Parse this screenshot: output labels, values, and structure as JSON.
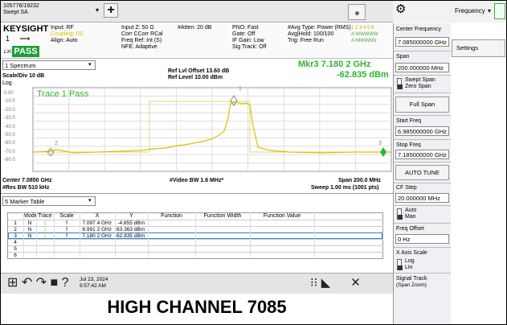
{
  "top": {
    "id": "105776/19232",
    "mode": "Swept SA",
    "menu": "Frequency"
  },
  "info": {
    "brand": "KEYSIGHT",
    "input": "Input: RF",
    "coupling": "Coupling: DC",
    "align": "Align: Auto",
    "status": "PASS",
    "lxi": "LXI",
    "col2": [
      "Input Z: 50 Ω",
      "Corr CCorr RCal",
      "Freq Ref: Int (S)",
      "NFE: Adaptive"
    ],
    "atten": "#Atten: 20 dB",
    "col4": [
      "PNO: Fast",
      "Gate: Off",
      "IF Gain: Low",
      "Sig Track: Off"
    ],
    "col5": [
      "#Avg Type: Power (RMS)",
      "Avg|Hold: 100/100",
      "Trig: Free Run"
    ],
    "traces": [
      "1 2 3 4 5 6",
      "A WWWWW",
      "A NNNNNN"
    ]
  },
  "graph": {
    "window": "1 Spectrum",
    "scale": "Scale/Div 10 dB",
    "log": "Log",
    "ref_offset": "Ref Lvl Offset 13.60 dB",
    "ref_level": "Ref Level 10.00 dBm",
    "marker_freq": "Mkr3  7.180 2 GHz",
    "marker_value": "-62.835 dBm",
    "trace_label": "Trace 1 Pass",
    "yticks": [
      "0.00",
      "-10.0",
      "-20.0",
      "-30.0",
      "-40.0",
      "-50.0",
      "-60.0",
      "-70.0",
      "-80.0"
    ],
    "marker_labels": [
      "1",
      "2",
      "3"
    ],
    "center": "Center 7.0850 GHz",
    "vbw": "#Video BW 1.6 MHz*",
    "span": "Span 200.0 MHz",
    "rbw": "#Res BW 510 kHz",
    "sweep": "Sweep 1.00 ms (1001 pts)"
  },
  "table": {
    "selector": "5 Marker Table",
    "headers": [
      "Mode",
      "Trace",
      "Scale",
      "X",
      "Y",
      "Function",
      "Function Width",
      "Function Value"
    ],
    "rows": [
      [
        "1",
        "N",
        "1",
        "f",
        "7.097 4 GHz",
        "-4.855 dBm"
      ],
      [
        "2",
        "N",
        "1",
        "f",
        "6.991 2 GHz",
        "-63.363 dBm"
      ],
      [
        "3",
        "N",
        "1",
        "f",
        "7.180 2 GHz",
        "-62.835 dBm"
      ],
      [
        "4"
      ],
      [
        "5"
      ],
      [
        "6"
      ]
    ]
  },
  "taskbar": {
    "date": "Jul 23, 2024",
    "time": "9:57:42 AM"
  },
  "panel": {
    "settings": "Settings",
    "center_label": "Center Frequency",
    "center_value": "7.085000000 GHz",
    "span_label": "Span",
    "span_value": "200.000000 MHz",
    "swept": "Swept Span",
    "zero": "Zero Span",
    "full": "Full Span",
    "start_label": "Start Freq",
    "start_value": "6.985000000 GHz",
    "stop_label": "Stop Freq",
    "stop_value": "7.185000000 GHz",
    "autotune": "AUTO TUNE",
    "cfstep_label": "CF Step",
    "cfstep_value": "20.000000 MHz",
    "auto": "Auto",
    "man": "Man",
    "offset_label": "Freq Offset",
    "offset_value": "0 Hz",
    "xscale": "X Axis Scale",
    "log": "Log",
    "lin": "Lin",
    "signal": "Signal Track",
    "signal_sub": "(Span Zoom)"
  },
  "caption": "HIGH CHANNEL 7085"
}
